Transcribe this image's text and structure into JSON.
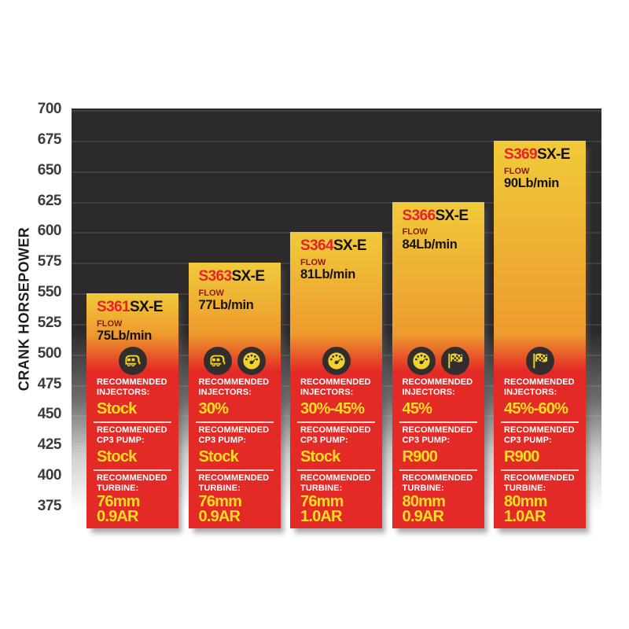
{
  "axis": {
    "title": "CRANK HORSEPOWER",
    "ticks": [
      700,
      675,
      650,
      625,
      600,
      575,
      550,
      525,
      500,
      475,
      450,
      425,
      400,
      375
    ]
  },
  "labels": {
    "flow": "FLOW",
    "injectors": "RECOMMENDED INJECTORS:",
    "cp3_pump": "RECOMMENDED CP3 PUMP:",
    "turbine": "RECOMMENDED TURBINE:"
  },
  "colors": {
    "plot_dark": "#2d2a2b",
    "bar_gradient_top": "#f0ca3a",
    "bar_gradient_mid": "#ed9b2e",
    "bar_red": "#e42a26",
    "model_red": "#e3242a",
    "flow_maroon": "#8c1a10",
    "value_yellow": "#ffdf1f",
    "icon_bg": "#322e2d",
    "icon_glyph": "#f2d22d"
  },
  "chart_data": {
    "type": "bar",
    "title": "",
    "xlabel": "",
    "ylabel": "CRANK HORSEPOWER",
    "ylim": [
      375,
      700
    ],
    "yticks": [
      700,
      675,
      650,
      625,
      600,
      575,
      550,
      525,
      500,
      475,
      450,
      425,
      400,
      375
    ],
    "grid": true,
    "legend": "none",
    "categories": [
      "S361SX-E",
      "S363SX-E",
      "S364SX-E",
      "S366SX-E",
      "S369SX-E"
    ],
    "values": [
      550,
      575,
      600,
      625,
      675
    ],
    "bars": [
      {
        "model_prefix": "S361",
        "model_suffix": "SX-E",
        "flow": "75Lb/min",
        "crank_hp": 550,
        "icons": [
          "camper-icon"
        ],
        "injectors": "Stock",
        "cp3_pump": "Stock",
        "turbine_mm": "76mm",
        "turbine_ar": "0.9AR"
      },
      {
        "model_prefix": "S363",
        "model_suffix": "SX-E",
        "flow": "77Lb/min",
        "crank_hp": 575,
        "icons": [
          "camper-icon",
          "gauge-icon"
        ],
        "injectors": "30%",
        "cp3_pump": "Stock",
        "turbine_mm": "76mm",
        "turbine_ar": "0.9AR"
      },
      {
        "model_prefix": "S364",
        "model_suffix": "SX-E",
        "flow": "81Lb/min",
        "crank_hp": 600,
        "icons": [
          "gauge-icon"
        ],
        "injectors": "30%-45%",
        "cp3_pump": "Stock",
        "turbine_mm": "76mm",
        "turbine_ar": "1.0AR"
      },
      {
        "model_prefix": "S366",
        "model_suffix": "SX-E",
        "flow": "84Lb/min",
        "crank_hp": 625,
        "icons": [
          "gauge-icon",
          "flag-icon"
        ],
        "injectors": "45%",
        "cp3_pump": "R900",
        "turbine_mm": "80mm",
        "turbine_ar": "0.9AR"
      },
      {
        "model_prefix": "S369",
        "model_suffix": "SX-E",
        "flow": "90Lb/min",
        "crank_hp": 675,
        "icons": [
          "flag-icon"
        ],
        "injectors": "45%-60%",
        "cp3_pump": "R900",
        "turbine_mm": "80mm",
        "turbine_ar": "1.0AR"
      }
    ]
  }
}
